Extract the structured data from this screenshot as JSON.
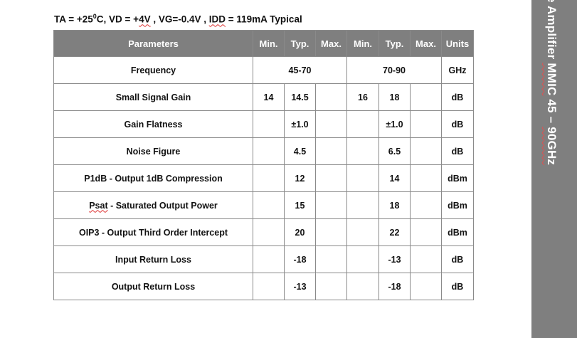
{
  "conditions": {
    "ta_prefix": "TA = +25",
    "ta_sup": "0",
    "ta_suffix": "C, VD = +",
    "vd_value": "4V",
    "vg_sep": " , VG=-0.4V , ",
    "idd_value": "IDD",
    "idd_rest": " = 119mA Typical"
  },
  "table": {
    "headers": [
      "Parameters",
      "Min.",
      "Typ.",
      "Max.",
      "Min.",
      "Typ.",
      "Max.",
      "Units"
    ],
    "rows": [
      {
        "param": "Frequency",
        "range1": "45-70",
        "range2": "70-90",
        "units": "GHz"
      },
      {
        "param": "Small Signal Gain",
        "min1": "14",
        "typ1": "14.5",
        "max1": "",
        "min2": "16",
        "typ2": "18",
        "max2": "",
        "units": "dB"
      },
      {
        "param": "Gain Flatness",
        "min1": "",
        "typ1": "±1.0",
        "max1": "",
        "min2": "",
        "typ2": "±1.0",
        "max2": "",
        "units": "dB"
      },
      {
        "param": "Noise Figure",
        "min1": "",
        "typ1": "4.5",
        "max1": "",
        "min2": "",
        "typ2": "6.5",
        "max2": "",
        "units": "dB"
      },
      {
        "param": "P1dB - Output 1dB Compression",
        "min1": "",
        "typ1": "12",
        "max1": "",
        "min2": "",
        "typ2": "14",
        "max2": "",
        "units": "dBm"
      },
      {
        "param_prefix": "Psat",
        "param": " - Saturated Output Power",
        "min1": "",
        "typ1": "15",
        "max1": "",
        "min2": "",
        "typ2": "18",
        "max2": "",
        "units": "dBm"
      },
      {
        "param": "OIP3 - Output Third Order Intercept",
        "min1": "",
        "typ1": "20",
        "max1": "",
        "min2": "",
        "typ2": "22",
        "max2": "",
        "units": "dBm"
      },
      {
        "param": "Input Return Loss",
        "min1": "",
        "typ1": "-18",
        "max1": "",
        "min2": "",
        "typ2": "-13",
        "max2": "",
        "units": "dB"
      },
      {
        "param": "Output Return Loss",
        "min1": "",
        "typ1": "-13",
        "max1": "",
        "min2": "",
        "typ2": "-18",
        "max2": "",
        "units": "dB"
      }
    ]
  },
  "sidebar": {
    "title_main": "e Amplifier ",
    "title_mmic": "MMIC",
    "title_mid": " 45 – ",
    "title_end": "90GHz"
  }
}
